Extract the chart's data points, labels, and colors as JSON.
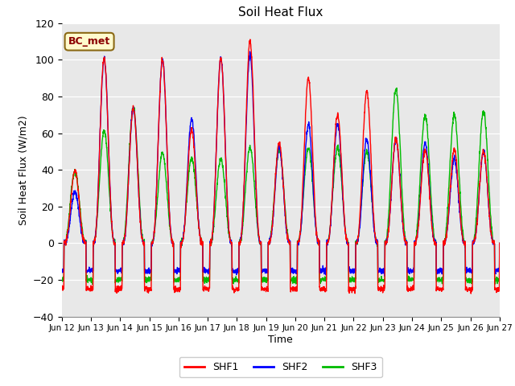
{
  "title": "Soil Heat Flux",
  "xlabel": "Time",
  "ylabel": "Soil Heat Flux (W/m2)",
  "ylim": [
    -40,
    120
  ],
  "annotation": "BC_met",
  "annotation_color": "#8B0000",
  "annotation_bg": "#FFFACD",
  "annotation_border": "#8B6914",
  "bg_color": "#E8E8E8",
  "fig_bg": "#FFFFFF",
  "series": [
    "SHF1",
    "SHF2",
    "SHF3"
  ],
  "colors": [
    "#FF0000",
    "#0000FF",
    "#00BB00"
  ],
  "linewidth": 1.0,
  "tick_labels": [
    "Jun 12",
    "Jun 13",
    "Jun 14",
    "Jun 15",
    "Jun 16",
    "Jun 17",
    "Jun 18",
    "Jun 19",
    "Jun 20",
    "Jun 21",
    "Jun 22",
    "Jun 23",
    "Jun 24",
    "Jun 25",
    "Jun 26",
    "Jun 27"
  ],
  "n_days": 15,
  "peaks1": [
    40,
    101,
    74,
    100,
    62,
    101,
    110,
    55,
    90,
    70,
    83,
    57,
    51,
    51,
    50
  ],
  "peaks2": [
    28,
    101,
    74,
    100,
    68,
    101,
    103,
    52,
    65,
    65,
    57,
    57,
    55,
    46,
    50
  ],
  "peaks3": [
    39,
    61,
    74,
    49,
    46,
    46,
    52,
    51,
    52,
    52,
    50,
    84,
    70,
    70,
    72
  ],
  "night_val1": -25,
  "night_val2": -15,
  "night_val3": -20
}
